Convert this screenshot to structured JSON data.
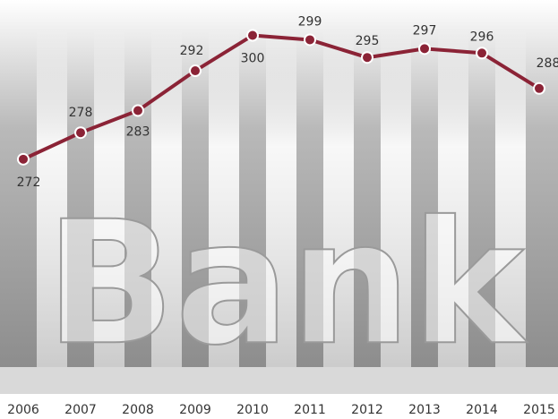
{
  "chart_data": {
    "type": "line",
    "background_text": "Bank",
    "categories": [
      "2006",
      "2007",
      "2008",
      "2009",
      "2010",
      "2011",
      "2012",
      "2013",
      "2014",
      "2015"
    ],
    "series": [
      {
        "color": "#8b2336",
        "values": [
          272,
          278,
          283,
          292,
          300,
          299,
          295,
          297,
          296,
          288
        ]
      }
    ],
    "ylim": [
      225,
      308
    ]
  }
}
